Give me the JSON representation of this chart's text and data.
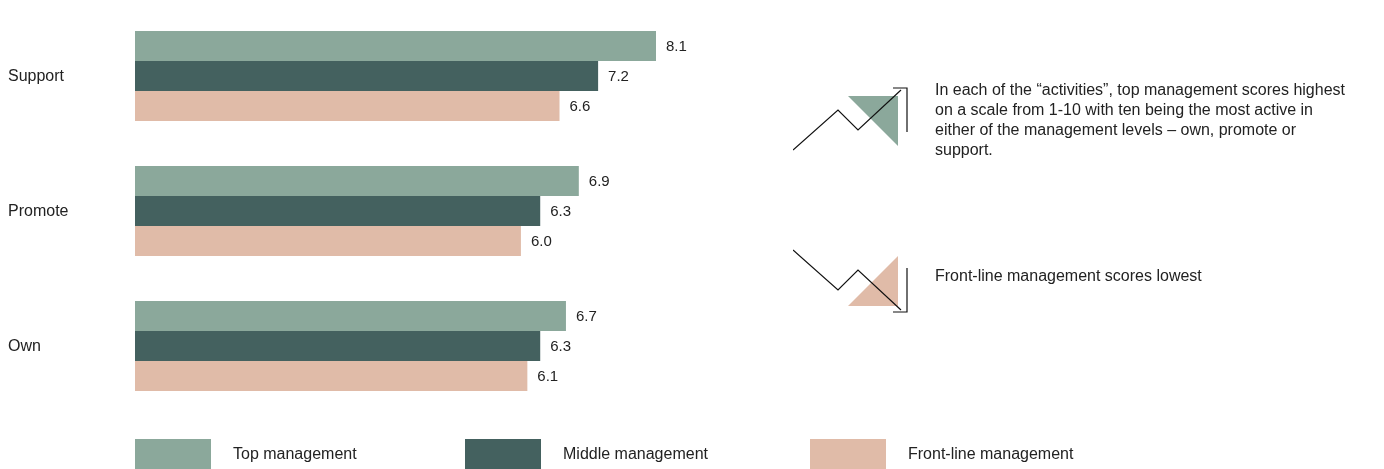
{
  "chart_data": {
    "type": "bar",
    "orientation": "horizontal",
    "categories": [
      "Support",
      "Promote",
      "Own"
    ],
    "series": [
      {
        "name": "Top management",
        "color": "#8ba89b",
        "values": [
          8.1,
          6.9,
          6.7
        ],
        "value_labels": [
          "8.1",
          "6.9",
          "6.7"
        ]
      },
      {
        "name": "Middle management",
        "color": "#44615f",
        "values": [
          7.2,
          6.3,
          6.3
        ],
        "value_labels": [
          "7.2",
          "6.3",
          "6.3"
        ]
      },
      {
        "name": "Front-line management",
        "color": "#e0bba8",
        "values": [
          6.6,
          6.0,
          6.1
        ],
        "value_labels": [
          "6.6",
          "6.0",
          "6.1"
        ]
      }
    ],
    "legend": "bottom",
    "annotations": [
      "In each of the “activities”, top management scores highest on a scale from 1-10 with ten being the most active in either of the management levels – own, promote or support.",
      "Front-line management scores lowest"
    ]
  }
}
